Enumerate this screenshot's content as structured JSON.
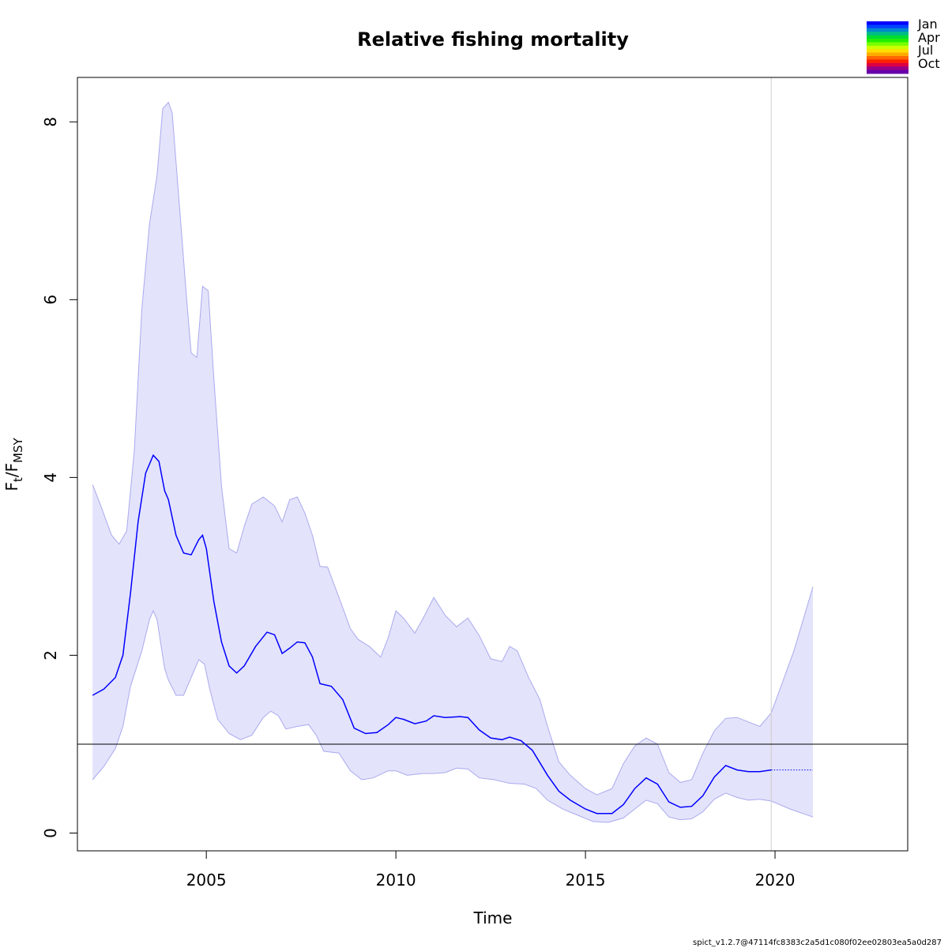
{
  "chart_data": {
    "type": "line",
    "title": "Relative fishing mortality",
    "xlabel": "Time",
    "ylabel": {
      "base": "F",
      "sub1": "t",
      "slash": "/F",
      "sub2": "MSY"
    },
    "xlim": [
      2001.6,
      2023.5
    ],
    "ylim": [
      -0.2,
      8.5
    ],
    "xticks": [
      2005,
      2010,
      2015,
      2020
    ],
    "yticks": [
      0,
      2,
      4,
      6,
      8
    ],
    "reference_line_y": 1,
    "vertical_line_x": 2019.9,
    "series": [
      {
        "role": "estimate",
        "color": "#0000ff",
        "points": [
          [
            2002.0,
            1.55
          ],
          [
            2002.3,
            1.62
          ],
          [
            2002.6,
            1.75
          ],
          [
            2002.8,
            2.0
          ],
          [
            2003.0,
            2.7
          ],
          [
            2003.2,
            3.5
          ],
          [
            2003.4,
            4.05
          ],
          [
            2003.6,
            4.25
          ],
          [
            2003.75,
            4.18
          ],
          [
            2003.9,
            3.85
          ],
          [
            2004.0,
            3.75
          ],
          [
            2004.2,
            3.35
          ],
          [
            2004.4,
            3.15
          ],
          [
            2004.6,
            3.13
          ],
          [
            2004.8,
            3.3
          ],
          [
            2004.9,
            3.35
          ],
          [
            2005.0,
            3.2
          ],
          [
            2005.2,
            2.6
          ],
          [
            2005.4,
            2.15
          ],
          [
            2005.6,
            1.88
          ],
          [
            2005.8,
            1.8
          ],
          [
            2006.0,
            1.88
          ],
          [
            2006.3,
            2.1
          ],
          [
            2006.6,
            2.26
          ],
          [
            2006.8,
            2.23
          ],
          [
            2007.0,
            2.02
          ],
          [
            2007.2,
            2.08
          ],
          [
            2007.4,
            2.15
          ],
          [
            2007.6,
            2.14
          ],
          [
            2007.8,
            1.98
          ],
          [
            2008.0,
            1.68
          ],
          [
            2008.3,
            1.65
          ],
          [
            2008.6,
            1.5
          ],
          [
            2008.9,
            1.18
          ],
          [
            2009.2,
            1.12
          ],
          [
            2009.5,
            1.13
          ],
          [
            2009.8,
            1.22
          ],
          [
            2010.0,
            1.3
          ],
          [
            2010.2,
            1.28
          ],
          [
            2010.5,
            1.23
          ],
          [
            2010.8,
            1.26
          ],
          [
            2011.0,
            1.32
          ],
          [
            2011.3,
            1.3
          ],
          [
            2011.7,
            1.31
          ],
          [
            2011.9,
            1.3
          ],
          [
            2012.2,
            1.16
          ],
          [
            2012.5,
            1.07
          ],
          [
            2012.8,
            1.05
          ],
          [
            2013.0,
            1.08
          ],
          [
            2013.3,
            1.04
          ],
          [
            2013.6,
            0.93
          ],
          [
            2014.0,
            0.65
          ],
          [
            2014.3,
            0.47
          ],
          [
            2014.6,
            0.37
          ],
          [
            2015.0,
            0.27
          ],
          [
            2015.3,
            0.22
          ],
          [
            2015.7,
            0.22
          ],
          [
            2016.0,
            0.32
          ],
          [
            2016.3,
            0.5
          ],
          [
            2016.6,
            0.62
          ],
          [
            2016.9,
            0.55
          ],
          [
            2017.2,
            0.35
          ],
          [
            2017.5,
            0.29
          ],
          [
            2017.8,
            0.3
          ],
          [
            2018.1,
            0.42
          ],
          [
            2018.4,
            0.63
          ],
          [
            2018.7,
            0.76
          ],
          [
            2019.0,
            0.71
          ],
          [
            2019.3,
            0.69
          ],
          [
            2019.6,
            0.69
          ],
          [
            2019.9,
            0.71
          ]
        ]
      },
      {
        "role": "forecast",
        "color": "#0000ff",
        "points": [
          [
            2019.9,
            0.71
          ],
          [
            2021.0,
            0.71
          ]
        ]
      }
    ],
    "ci": {
      "fill_color": "#e3e3fb",
      "edge_color": "#aaaaee",
      "upper": [
        [
          2002.0,
          3.92
        ],
        [
          2002.2,
          3.7
        ],
        [
          2002.5,
          3.35
        ],
        [
          2002.7,
          3.25
        ],
        [
          2002.9,
          3.4
        ],
        [
          2003.1,
          4.3
        ],
        [
          2003.3,
          5.9
        ],
        [
          2003.5,
          6.85
        ],
        [
          2003.7,
          7.4
        ],
        [
          2003.85,
          8.15
        ],
        [
          2004.0,
          8.22
        ],
        [
          2004.1,
          8.1
        ],
        [
          2004.3,
          7.0
        ],
        [
          2004.5,
          5.9
        ],
        [
          2004.6,
          5.4
        ],
        [
          2004.75,
          5.35
        ],
        [
          2004.9,
          6.15
        ],
        [
          2005.05,
          6.1
        ],
        [
          2005.2,
          5.1
        ],
        [
          2005.4,
          3.9
        ],
        [
          2005.6,
          3.2
        ],
        [
          2005.8,
          3.15
        ],
        [
          2006.0,
          3.45
        ],
        [
          2006.2,
          3.7
        ],
        [
          2006.5,
          3.78
        ],
        [
          2006.8,
          3.68
        ],
        [
          2007.0,
          3.5
        ],
        [
          2007.2,
          3.75
        ],
        [
          2007.4,
          3.78
        ],
        [
          2007.6,
          3.6
        ],
        [
          2007.8,
          3.35
        ],
        [
          2008.0,
          3.0
        ],
        [
          2008.2,
          2.99
        ],
        [
          2008.5,
          2.65
        ],
        [
          2008.8,
          2.3
        ],
        [
          2009.0,
          2.18
        ],
        [
          2009.3,
          2.1
        ],
        [
          2009.6,
          1.98
        ],
        [
          2009.8,
          2.2
        ],
        [
          2010.0,
          2.5
        ],
        [
          2010.2,
          2.42
        ],
        [
          2010.5,
          2.25
        ],
        [
          2010.7,
          2.4
        ],
        [
          2011.0,
          2.65
        ],
        [
          2011.3,
          2.45
        ],
        [
          2011.6,
          2.32
        ],
        [
          2011.9,
          2.42
        ],
        [
          2012.2,
          2.22
        ],
        [
          2012.5,
          1.96
        ],
        [
          2012.8,
          1.93
        ],
        [
          2013.0,
          2.1
        ],
        [
          2013.2,
          2.05
        ],
        [
          2013.5,
          1.75
        ],
        [
          2013.8,
          1.5
        ],
        [
          2014.0,
          1.2
        ],
        [
          2014.3,
          0.8
        ],
        [
          2014.6,
          0.65
        ],
        [
          2015.0,
          0.5
        ],
        [
          2015.3,
          0.43
        ],
        [
          2015.7,
          0.5
        ],
        [
          2016.0,
          0.78
        ],
        [
          2016.3,
          0.98
        ],
        [
          2016.6,
          1.07
        ],
        [
          2016.9,
          1.0
        ],
        [
          2017.2,
          0.68
        ],
        [
          2017.5,
          0.57
        ],
        [
          2017.8,
          0.6
        ],
        [
          2018.1,
          0.9
        ],
        [
          2018.4,
          1.15
        ],
        [
          2018.7,
          1.29
        ],
        [
          2019.0,
          1.3
        ],
        [
          2019.3,
          1.25
        ],
        [
          2019.6,
          1.2
        ],
        [
          2019.9,
          1.35
        ],
        [
          2020.5,
          2.05
        ],
        [
          2021.0,
          2.77
        ]
      ],
      "lower": [
        [
          2002.0,
          0.6
        ],
        [
          2002.3,
          0.75
        ],
        [
          2002.6,
          0.95
        ],
        [
          2002.8,
          1.2
        ],
        [
          2003.0,
          1.65
        ],
        [
          2003.3,
          2.05
        ],
        [
          2003.5,
          2.4
        ],
        [
          2003.6,
          2.5
        ],
        [
          2003.7,
          2.4
        ],
        [
          2003.9,
          1.85
        ],
        [
          2004.0,
          1.72
        ],
        [
          2004.2,
          1.55
        ],
        [
          2004.4,
          1.55
        ],
        [
          2004.6,
          1.75
        ],
        [
          2004.8,
          1.95
        ],
        [
          2004.95,
          1.9
        ],
        [
          2005.1,
          1.6
        ],
        [
          2005.3,
          1.28
        ],
        [
          2005.6,
          1.12
        ],
        [
          2005.9,
          1.05
        ],
        [
          2006.2,
          1.1
        ],
        [
          2006.5,
          1.3
        ],
        [
          2006.7,
          1.37
        ],
        [
          2006.9,
          1.32
        ],
        [
          2007.1,
          1.17
        ],
        [
          2007.4,
          1.2
        ],
        [
          2007.7,
          1.22
        ],
        [
          2007.9,
          1.1
        ],
        [
          2008.1,
          0.92
        ],
        [
          2008.5,
          0.9
        ],
        [
          2008.8,
          0.7
        ],
        [
          2009.1,
          0.6
        ],
        [
          2009.4,
          0.62
        ],
        [
          2009.8,
          0.7
        ],
        [
          2010.0,
          0.7
        ],
        [
          2010.3,
          0.65
        ],
        [
          2010.7,
          0.67
        ],
        [
          2011.0,
          0.67
        ],
        [
          2011.3,
          0.68
        ],
        [
          2011.6,
          0.73
        ],
        [
          2011.9,
          0.72
        ],
        [
          2012.2,
          0.62
        ],
        [
          2012.6,
          0.6
        ],
        [
          2013.0,
          0.56
        ],
        [
          2013.4,
          0.55
        ],
        [
          2013.7,
          0.5
        ],
        [
          2014.0,
          0.37
        ],
        [
          2014.4,
          0.27
        ],
        [
          2014.8,
          0.2
        ],
        [
          2015.2,
          0.13
        ],
        [
          2015.6,
          0.12
        ],
        [
          2016.0,
          0.17
        ],
        [
          2016.3,
          0.27
        ],
        [
          2016.6,
          0.37
        ],
        [
          2016.9,
          0.33
        ],
        [
          2017.2,
          0.18
        ],
        [
          2017.5,
          0.15
        ],
        [
          2017.8,
          0.16
        ],
        [
          2018.1,
          0.24
        ],
        [
          2018.4,
          0.38
        ],
        [
          2018.7,
          0.45
        ],
        [
          2019.0,
          0.4
        ],
        [
          2019.3,
          0.37
        ],
        [
          2019.6,
          0.38
        ],
        [
          2019.9,
          0.36
        ],
        [
          2020.4,
          0.27
        ],
        [
          2021.0,
          0.18
        ]
      ]
    },
    "legend": {
      "placement": "top-right",
      "labels": [
        "Jan",
        "Apr",
        "Jul",
        "Oct"
      ],
      "colors": [
        "#0000ff",
        "#0044ff",
        "#0088cc",
        "#00bb88",
        "#00dd33",
        "#22ee00",
        "#77ff00",
        "#ccff00",
        "#ffdd00",
        "#ffaa00",
        "#ff6600",
        "#ff2200",
        "#dd0044",
        "#990088",
        "#6600aa"
      ]
    }
  },
  "footer": "spict_v1.2.7@47114fc8383c2a5d1c080f02ee02803ea5a0d287"
}
